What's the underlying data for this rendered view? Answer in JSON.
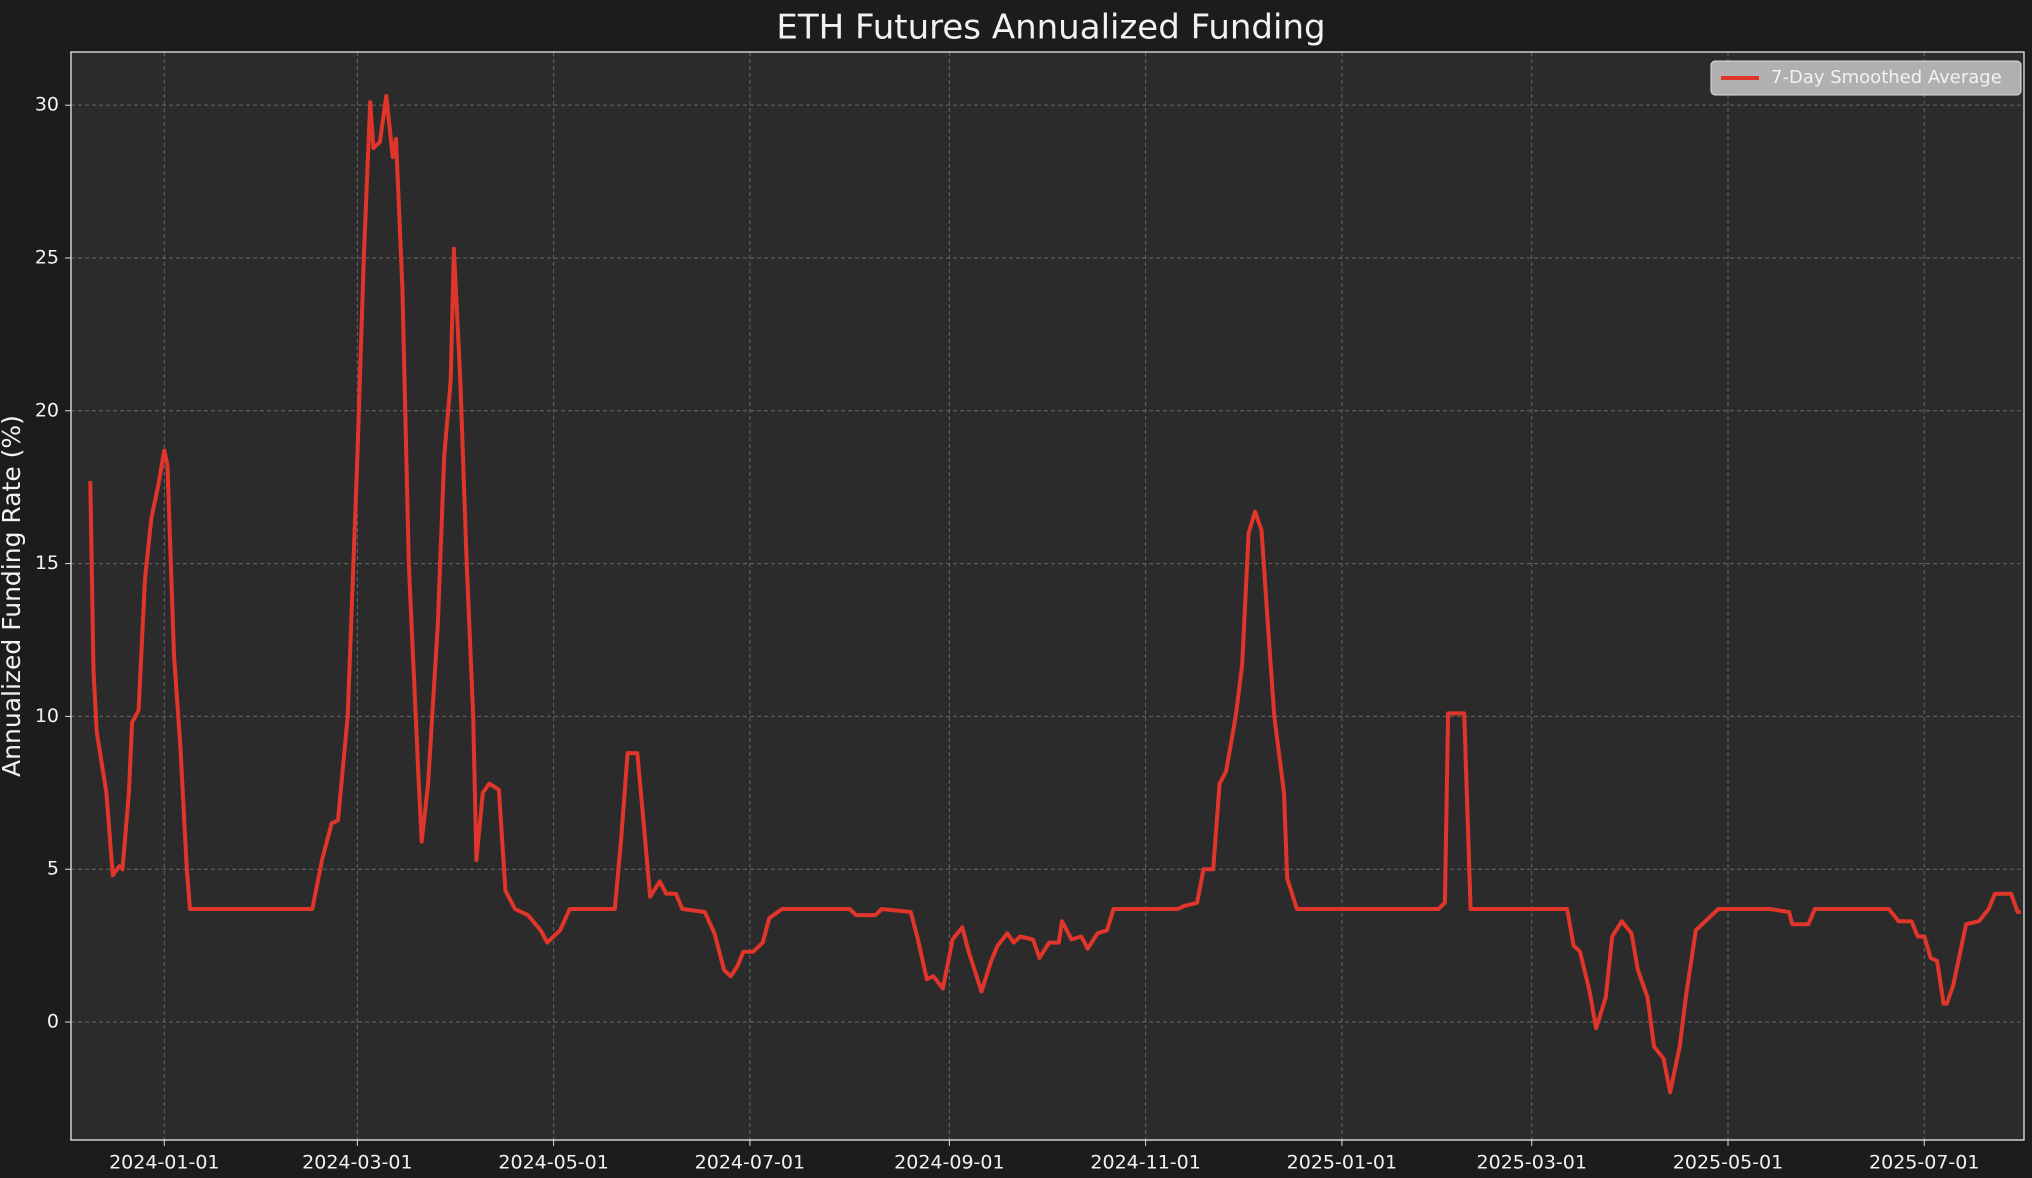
{
  "chart_data": {
    "type": "line",
    "title": "ETH Futures Annualized Funding",
    "ylabel": "Annualized Funding Rate (%)",
    "x": [
      "2023-12-09",
      "2023-12-10",
      "2023-12-11",
      "2023-12-14",
      "2023-12-16",
      "2023-12-18",
      "2023-12-19",
      "2023-12-21",
      "2023-12-22",
      "2023-12-24",
      "2023-12-26",
      "2023-12-28",
      "2023-12-30",
      "2024-01-01",
      "2024-01-02",
      "2024-01-04",
      "2024-01-06",
      "2024-01-08",
      "2024-01-09",
      "2024-02-16",
      "2024-02-19",
      "2024-02-22",
      "2024-02-24",
      "2024-02-27",
      "2024-03-01",
      "2024-03-03",
      "2024-03-05",
      "2024-03-06",
      "2024-03-08",
      "2024-03-10",
      "2024-03-12",
      "2024-03-13",
      "2024-03-15",
      "2024-03-17",
      "2024-03-20",
      "2024-03-21",
      "2024-03-23",
      "2024-03-26",
      "2024-03-28",
      "2024-03-30",
      "2024-03-31",
      "2024-04-02",
      "2024-04-04",
      "2024-04-06",
      "2024-04-07",
      "2024-04-09",
      "2024-04-11",
      "2024-04-14",
      "2024-04-16",
      "2024-04-19",
      "2024-04-23",
      "2024-04-27",
      "2024-04-29",
      "2024-05-03",
      "2024-05-06",
      "2024-05-20",
      "2024-05-22",
      "2024-05-24",
      "2024-05-27",
      "2024-05-29",
      "2024-05-31",
      "2024-06-03",
      "2024-06-05",
      "2024-06-08",
      "2024-06-10",
      "2024-06-17",
      "2024-06-20",
      "2024-06-23",
      "2024-06-25",
      "2024-06-27",
      "2024-06-29",
      "2024-07-02",
      "2024-07-05",
      "2024-07-07",
      "2024-07-11",
      "2024-08-01",
      "2024-08-03",
      "2024-08-09",
      "2024-08-11",
      "2024-08-20",
      "2024-08-22",
      "2024-08-25",
      "2024-08-27",
      "2024-08-30",
      "2024-09-02",
      "2024-09-05",
      "2024-09-07",
      "2024-09-11",
      "2024-09-14",
      "2024-09-16",
      "2024-09-19",
      "2024-09-21",
      "2024-09-23",
      "2024-09-27",
      "2024-09-29",
      "2024-10-02",
      "2024-10-05",
      "2024-10-06",
      "2024-10-09",
      "2024-10-12",
      "2024-10-14",
      "2024-10-17",
      "2024-10-20",
      "2024-10-22",
      "2024-11-11",
      "2024-11-13",
      "2024-11-17",
      "2024-11-19",
      "2024-11-22",
      "2024-11-24",
      "2024-11-26",
      "2024-11-29",
      "2024-12-01",
      "2024-12-03",
      "2024-12-05",
      "2024-12-07",
      "2024-12-09",
      "2024-12-11",
      "2024-12-14",
      "2024-12-15",
      "2024-12-18",
      "2025-01-31",
      "2025-02-02",
      "2025-02-03",
      "2025-02-08",
      "2025-02-10",
      "2025-03-12",
      "2025-03-14",
      "2025-03-16",
      "2025-03-19",
      "2025-03-21",
      "2025-03-24",
      "2025-03-26",
      "2025-03-29",
      "2025-04-01",
      "2025-04-03",
      "2025-04-06",
      "2025-04-08",
      "2025-04-11",
      "2025-04-13",
      "2025-04-16",
      "2025-04-18",
      "2025-04-21",
      "2025-04-25",
      "2025-04-28",
      "2025-05-14",
      "2025-05-20",
      "2025-05-21",
      "2025-05-26",
      "2025-05-28",
      "2025-06-20",
      "2025-06-23",
      "2025-06-27",
      "2025-06-29",
      "2025-07-01",
      "2025-07-03",
      "2025-07-05",
      "2025-07-07",
      "2025-07-08",
      "2025-07-10",
      "2025-07-14",
      "2025-07-18",
      "2025-07-21",
      "2025-07-23",
      "2025-07-28",
      "2025-07-30",
      "2025-07-31"
    ],
    "series": [
      {
        "name": "7-Day Smoothed Average",
        "color": "#e0352b",
        "values": [
          17.7,
          11.5,
          9.5,
          7.5,
          4.8,
          5.1,
          5.0,
          7.5,
          9.8,
          10.2,
          14.5,
          16.5,
          17.5,
          18.7,
          18.2,
          12.0,
          9.0,
          5.0,
          3.7,
          3.7,
          5.3,
          6.5,
          6.6,
          10.0,
          18.5,
          25.0,
          30.1,
          28.6,
          28.8,
          30.3,
          28.3,
          28.9,
          24.0,
          15.0,
          8.0,
          5.9,
          7.8,
          13.0,
          18.5,
          21.0,
          25.3,
          21.0,
          15.0,
          10.0,
          5.3,
          7.5,
          7.8,
          7.6,
          4.3,
          3.7,
          3.5,
          3.0,
          2.6,
          3.0,
          3.7,
          3.7,
          6.0,
          8.8,
          8.8,
          6.5,
          4.1,
          4.6,
          4.2,
          4.2,
          3.7,
          3.6,
          2.9,
          1.7,
          1.5,
          1.8,
          2.3,
          2.3,
          2.6,
          3.4,
          3.7,
          3.7,
          3.5,
          3.5,
          3.7,
          3.6,
          2.8,
          1.4,
          1.5,
          1.1,
          2.7,
          3.1,
          2.3,
          1.0,
          2.0,
          2.5,
          2.9,
          2.6,
          2.8,
          2.7,
          2.1,
          2.6,
          2.6,
          3.3,
          2.7,
          2.8,
          2.4,
          2.9,
          3.0,
          3.7,
          3.7,
          3.8,
          3.9,
          5.0,
          5.0,
          7.8,
          8.2,
          10.0,
          11.7,
          16.0,
          16.7,
          16.1,
          13.0,
          10.0,
          7.5,
          4.7,
          3.7,
          3.7,
          3.9,
          10.1,
          10.1,
          3.7,
          3.7,
          2.5,
          2.3,
          1.0,
          -0.2,
          0.8,
          2.8,
          3.3,
          2.9,
          1.7,
          0.8,
          -0.8,
          -1.2,
          -2.3,
          -0.8,
          0.9,
          3.0,
          3.4,
          3.7,
          3.7,
          3.6,
          3.2,
          3.2,
          3.7,
          3.7,
          3.3,
          3.3,
          2.8,
          2.8,
          2.1,
          2.0,
          0.6,
          0.6,
          1.2,
          3.2,
          3.3,
          3.7,
          4.2,
          4.2,
          3.6,
          3.6
        ]
      }
    ],
    "xlim": [
      "2023-12-03",
      "2025-08-01"
    ],
    "xticks": [
      "2024-01-01",
      "2024-03-01",
      "2024-05-01",
      "2024-07-01",
      "2024-09-01",
      "2024-11-01",
      "2025-01-01",
      "2025-03-01",
      "2025-05-01",
      "2025-07-01"
    ],
    "ylim": [
      -3.86,
      31.74
    ],
    "yticks": [
      0,
      5,
      10,
      15,
      20,
      25,
      30
    ],
    "grid": true,
    "legend": "upper right"
  }
}
